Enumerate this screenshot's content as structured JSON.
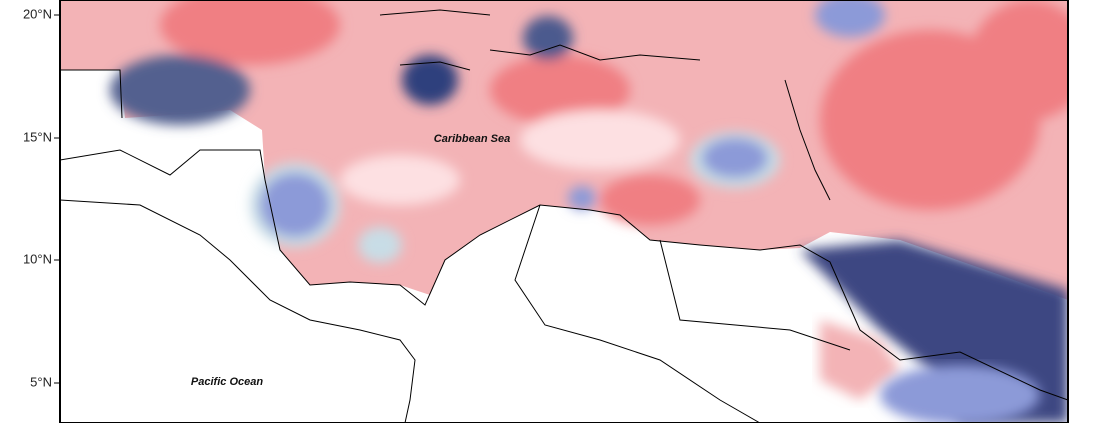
{
  "map": {
    "lat_labels": [
      "20°N",
      "15°N",
      "10°N",
      "5°N"
    ],
    "place_labels": [
      "Caribbean Sea",
      "Pacific Ocean"
    ]
  }
}
